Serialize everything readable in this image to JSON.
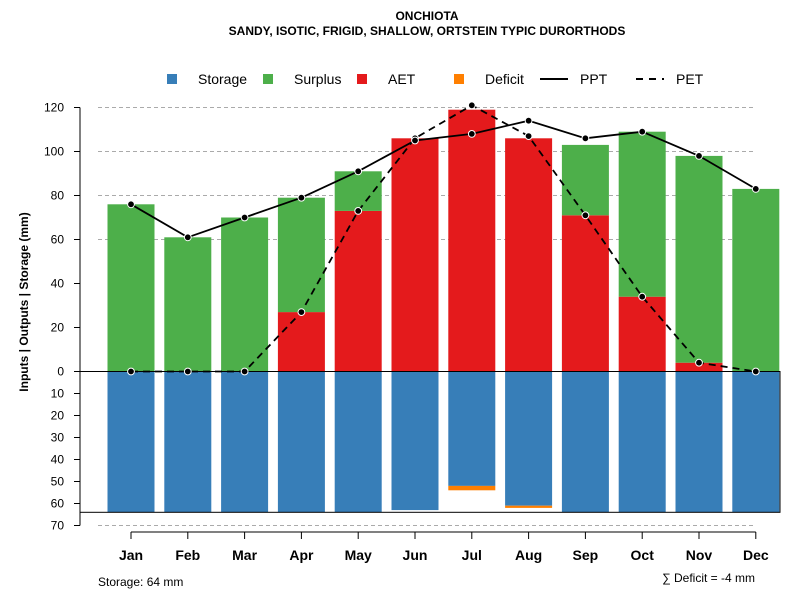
{
  "chart_data": {
    "type": "bar",
    "title": "ONCHIOTA",
    "subtitle": "SANDY, ISOTIC, FRIGID, SHALLOW, ORTSTEIN TYPIC DURORTHODS",
    "ylabel": "Inputs | Outputs | Storage    (mm)",
    "categories": [
      "Jan",
      "Feb",
      "Mar",
      "Apr",
      "May",
      "Jun",
      "Jul",
      "Aug",
      "Sep",
      "Oct",
      "Nov",
      "Dec"
    ],
    "ylim": [
      -70,
      125
    ],
    "yticks_upper": [
      0,
      20,
      40,
      60,
      80,
      100,
      120
    ],
    "yticks_lower": [
      10,
      20,
      30,
      40,
      50,
      60,
      70
    ],
    "gridlines": [
      120,
      100,
      80,
      60,
      -70
    ],
    "legend": {
      "placement": "top",
      "items": [
        {
          "label": "Storage",
          "kind": "box",
          "color": "#377eb8"
        },
        {
          "label": "Surplus",
          "kind": "box",
          "color": "#4daf4a"
        },
        {
          "label": "AET",
          "kind": "box",
          "color": "#e41a1c"
        },
        {
          "label": "Deficit",
          "kind": "box",
          "color": "#ff7f00"
        },
        {
          "label": "PPT",
          "kind": "line-solid",
          "color": "#000000"
        },
        {
          "label": "PET",
          "kind": "line-dashed",
          "color": "#000000"
        }
      ]
    },
    "series": [
      {
        "name": "AET",
        "color": "#e41a1c",
        "values": [
          0,
          0,
          0,
          27,
          73,
          106,
          119,
          106,
          71,
          34,
          4,
          0
        ]
      },
      {
        "name": "Surplus",
        "color": "#4daf4a",
        "values": [
          76,
          61,
          70,
          52,
          18,
          0,
          0,
          0,
          32,
          75,
          94,
          83
        ]
      },
      {
        "name": "Storage",
        "color": "#377eb8",
        "values": [
          64,
          64,
          64,
          64,
          64,
          63,
          52,
          61,
          64,
          64,
          64,
          64
        ]
      },
      {
        "name": "Deficit",
        "color": "#ff7f00",
        "values": [
          0,
          0,
          0,
          0,
          0,
          0,
          2,
          1,
          0,
          0,
          0,
          0
        ]
      },
      {
        "name": "PPT",
        "color": "#000000",
        "values": [
          76,
          61,
          70,
          79,
          91,
          105,
          108,
          114,
          106,
          109,
          98,
          83
        ]
      },
      {
        "name": "PET",
        "color": "#000000",
        "values": [
          0,
          0,
          0,
          27,
          73,
          106,
          121,
          107,
          71,
          34,
          4,
          0
        ]
      }
    ],
    "storage_capacity": 64
  },
  "footer": {
    "storage_text": "Storage: 64 mm",
    "deficit_text": "∑ Deficit = -4 mm"
  }
}
